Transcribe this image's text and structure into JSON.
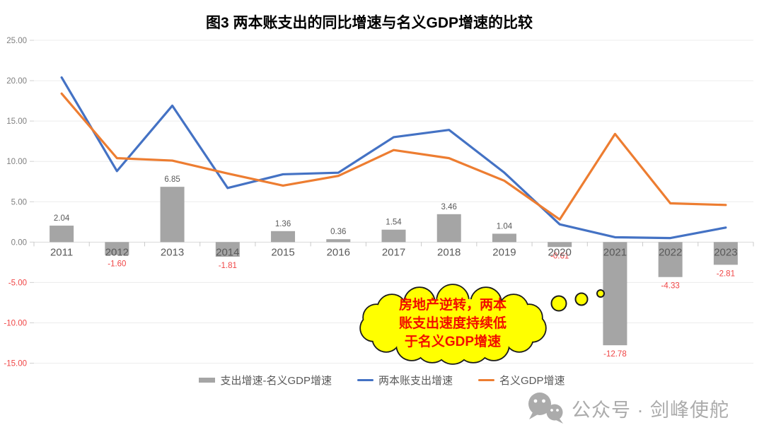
{
  "title": "图3 两本账支出的同比增速与名义GDP增速的比较",
  "chart_data": {
    "type": "bar+line",
    "categories": [
      "2011",
      "2012",
      "2013",
      "2014",
      "2015",
      "2016",
      "2017",
      "2018",
      "2019",
      "2020",
      "2021",
      "2022",
      "2023"
    ],
    "bar_series": {
      "name": "支出增速-名义GDP增速",
      "values": [
        2.04,
        -1.6,
        6.85,
        -1.81,
        1.36,
        0.36,
        1.54,
        3.46,
        1.04,
        -0.61,
        -12.78,
        -4.33,
        -2.81
      ],
      "labels": [
        "2.04",
        "-1.60",
        "6.85",
        "-1.81",
        "1.36",
        "0.36",
        "1.54",
        "3.46",
        "1.04",
        "-0.61",
        "-12.78",
        "-4.33",
        "-2.81"
      ],
      "color": "#A5A5A5"
    },
    "line_series": [
      {
        "name": "两本账支出增速",
        "color": "#4472C4",
        "values": [
          20.4,
          8.8,
          16.9,
          6.7,
          8.4,
          8.6,
          13.0,
          13.9,
          8.6,
          2.2,
          0.6,
          0.5,
          1.8
        ]
      },
      {
        "name": "名义GDP增速",
        "color": "#ED7D31",
        "values": [
          18.4,
          10.4,
          10.1,
          8.5,
          7.0,
          8.2,
          11.4,
          10.4,
          7.6,
          2.8,
          13.4,
          4.8,
          4.6
        ]
      }
    ],
    "ylim": [
      -15,
      25
    ],
    "ytick_step": 5,
    "ytick_labels": [
      "25.00",
      "20.00",
      "15.00",
      "10.00",
      "5.00",
      "0.00",
      "-5.00",
      "-10.00",
      "-15.00"
    ],
    "grid": true,
    "legend_position": "bottom"
  },
  "colors": {
    "negative_label": "#F04545",
    "axis_label": "#7F7F7F",
    "category_label": "#595959",
    "positive_bar_label": "#595959",
    "gridline": "#ECECEC",
    "zero_line": "#D9D9D9"
  },
  "callout": {
    "lines": [
      "房地产逆转，两本",
      "账支出速度持续低",
      "于名义GDP增速"
    ],
    "fill": "#FFFF00",
    "outline": "#1A1A1A",
    "text_color": "#F20D00"
  },
  "watermark": {
    "text": "公众号 · 剑峰使舵",
    "icon": "wechat-icon",
    "color": "#ABABAB"
  }
}
